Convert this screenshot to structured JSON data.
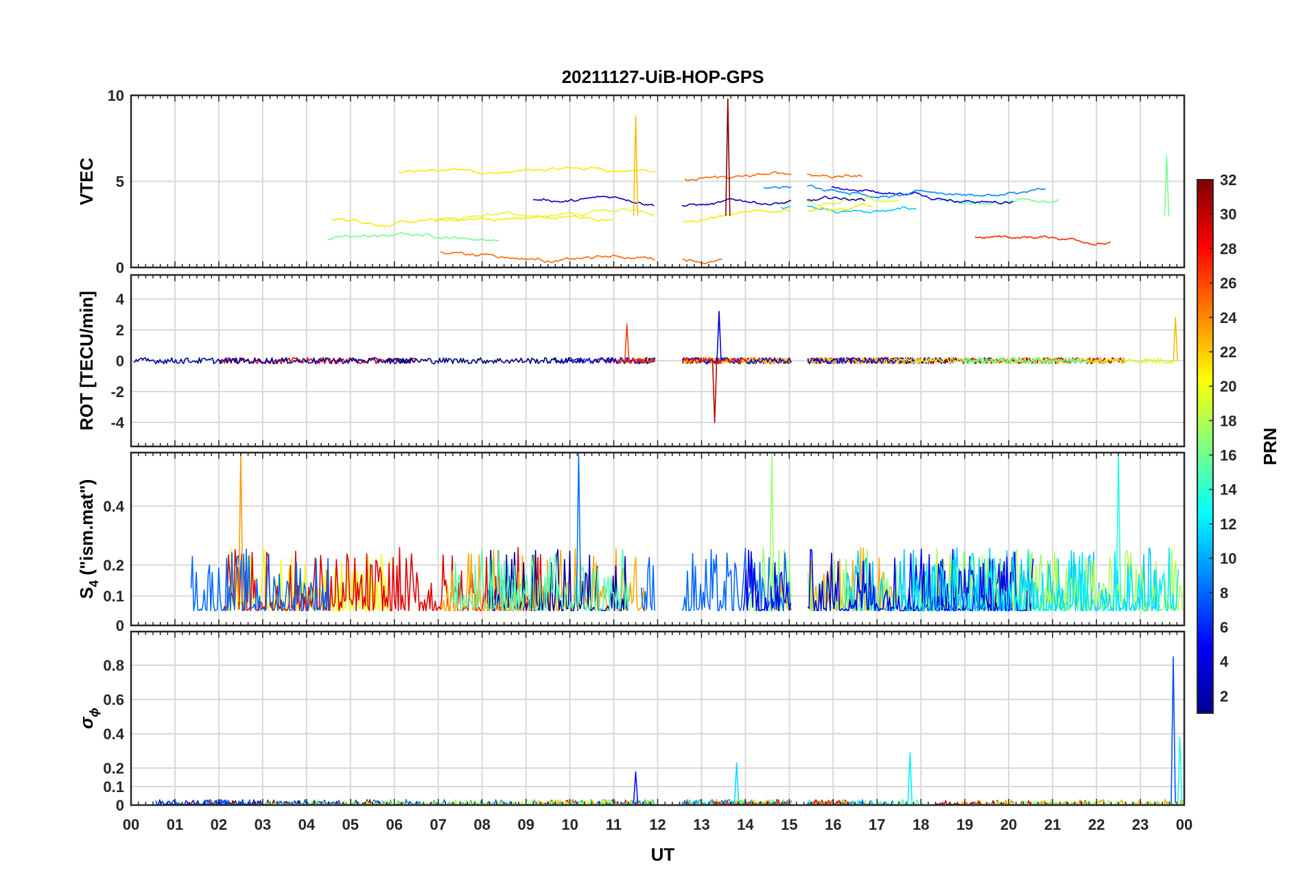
{
  "chart_data": {
    "type": "line",
    "title": "20211127-UiB-HOP-GPS",
    "xlabel": "UT",
    "x_ticks": [
      "00",
      "01",
      "02",
      "03",
      "04",
      "05",
      "06",
      "07",
      "08",
      "09",
      "10",
      "11",
      "12",
      "13",
      "14",
      "15",
      "16",
      "17",
      "18",
      "19",
      "20",
      "21",
      "22",
      "23",
      "00"
    ],
    "xlim_hours": [
      0,
      24
    ],
    "data_gaps_hours": [
      [
        11.95,
        12.55
      ],
      [
        15.05,
        15.4
      ]
    ],
    "grid": true,
    "colorbar": {
      "label": "PRN",
      "range": [
        1,
        32
      ],
      "ticks": [
        "2",
        "4",
        "6",
        "8",
        "10",
        "12",
        "14",
        "16",
        "18",
        "20",
        "22",
        "24",
        "26",
        "28",
        "30",
        "32"
      ],
      "colormap": "jet",
      "location": "right"
    },
    "panels": [
      {
        "name": "vtec",
        "ylabel": "VTEC",
        "ylim": [
          0,
          10
        ],
        "y_ticks": [
          0,
          5,
          10
        ],
        "typical_range": [
          0.5,
          5.5
        ],
        "peaks": [
          {
            "x_hours": 13.6,
            "value": 9.8
          },
          {
            "x_hours": 11.5,
            "value": 8.8
          },
          {
            "x_hours": 23.6,
            "value": 6.5
          }
        ]
      },
      {
        "name": "rot",
        "ylabel": "ROT [TECU/min]",
        "ylim": [
          -5.5,
          5.5
        ],
        "y_ticks": [
          -4,
          -2,
          0,
          2,
          4
        ],
        "typical_range": [
          -0.4,
          0.4
        ],
        "peaks": [
          {
            "x_hours": 13.3,
            "value": -4.0
          },
          {
            "x_hours": 13.4,
            "value": 3.2
          },
          {
            "x_hours": 11.3,
            "value": 2.4
          },
          {
            "x_hours": 23.8,
            "value": 2.8
          }
        ]
      },
      {
        "name": "s4",
        "ylabel": "S",
        "ylabel_subscript": "4",
        "ylabel_suffix": " (\"ism.mat\")",
        "ylim": [
          0,
          0.6
        ],
        "y_ticks": [
          0,
          0.1,
          0.2,
          0.4
        ],
        "y_scale": "log-like",
        "typical_range": [
          0.05,
          0.2
        ],
        "peaks": [
          {
            "x_hours": 10.2,
            "value": 0.6
          },
          {
            "x_hours": 2.5,
            "value": 0.6
          },
          {
            "x_hours": 14.6,
            "value": 0.6
          },
          {
            "x_hours": 22.5,
            "value": 0.6
          }
        ]
      },
      {
        "name": "sigma_phi",
        "ylabel": "σ",
        "ylabel_subscript": "ϕ",
        "ylim": [
          0,
          1
        ],
        "y_ticks": [
          0,
          0.1,
          0.2,
          0.4,
          0.6,
          0.8
        ],
        "y_scale": "log-like",
        "typical_range": [
          0,
          0.03
        ],
        "peaks": [
          {
            "x_hours": 23.75,
            "value": 0.85
          },
          {
            "x_hours": 23.9,
            "value": 0.38
          },
          {
            "x_hours": 13.8,
            "value": 0.23
          },
          {
            "x_hours": 17.75,
            "value": 0.29
          },
          {
            "x_hours": 11.5,
            "value": 0.18
          }
        ]
      }
    ]
  }
}
